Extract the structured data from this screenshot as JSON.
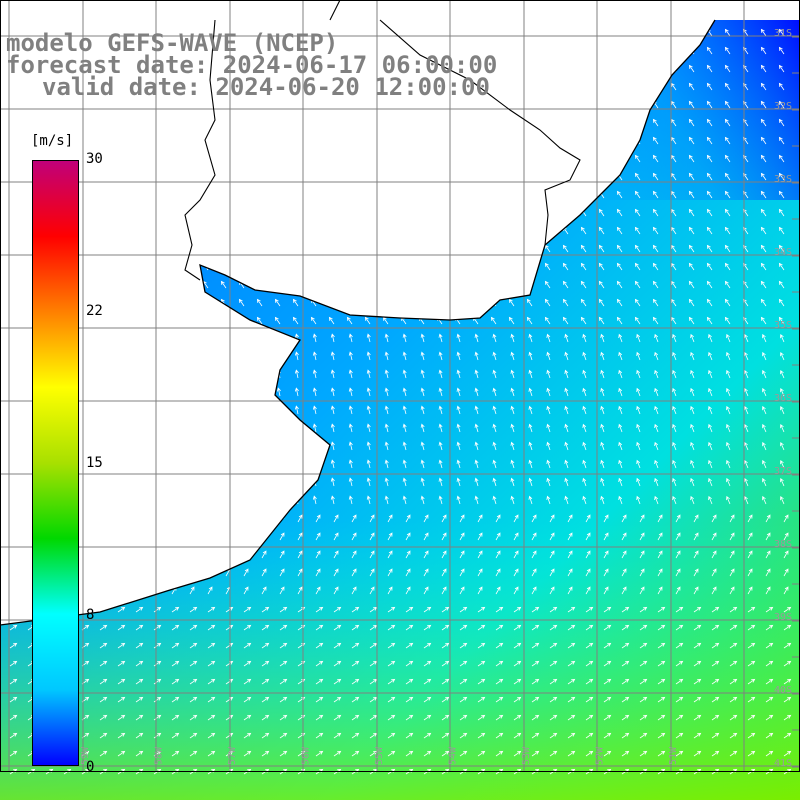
{
  "title": {
    "line1": "modelo GEFS-WAVE (NCEP)",
    "line2": "forecast date: 2024-06-17 06:00:00",
    "line3": "valid date: 2024-06-20 12:00:00"
  },
  "colorbar": {
    "units": "[m/s]",
    "min": 0,
    "max": 30,
    "ticks": [
      "30",
      "22",
      "15",
      "8",
      "0"
    ],
    "gradient_colors": [
      "#0000ff",
      "#00c8ff",
      "#00ffff",
      "#00d800",
      "#a8e000",
      "#ffff00",
      "#ff8000",
      "#ff0000",
      "#c0007a"
    ]
  },
  "map": {
    "field": "wind speed and direction",
    "land_color": "#ffffff",
    "coast_color": "#000000",
    "grid_color": "#808080",
    "latitude_labels": [
      "31S",
      "32S",
      "33S",
      "34S",
      "35S",
      "36S",
      "37S",
      "38S",
      "39S",
      "40S",
      "41S"
    ],
    "longitude_labels": [
      "59W",
      "58W",
      "57W",
      "56W",
      "55W",
      "54W",
      "53W",
      "52W",
      "51W"
    ],
    "arrows": "white wind direction arrows at each ocean grid cell"
  }
}
